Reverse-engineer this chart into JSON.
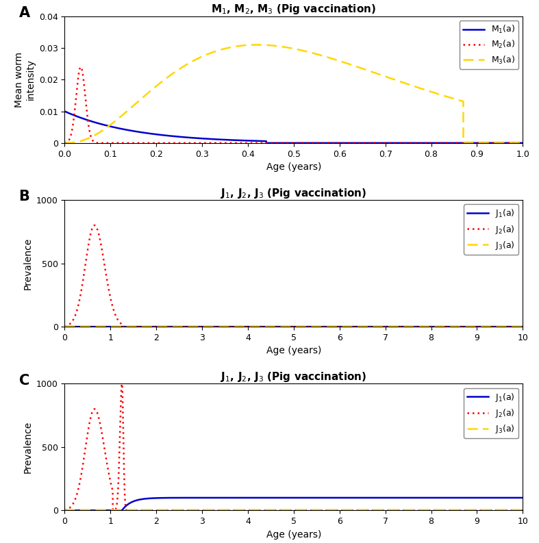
{
  "panel_A": {
    "title": "M$_1$, M$_2$, M$_3$ (Pig vaccination)",
    "xlabel": "Age (years)",
    "ylabel": "Mean worm\nintensity",
    "xlim": [
      0,
      1
    ],
    "ylim": [
      0,
      0.04
    ],
    "yticks": [
      0,
      0.01,
      0.02,
      0.03,
      0.04
    ],
    "xticks": [
      0,
      0.1,
      0.2,
      0.3,
      0.4,
      0.5,
      0.6,
      0.7,
      0.8,
      0.9,
      1.0
    ],
    "M1_color": "#0000CD",
    "M2_color": "#FF0000",
    "M3_color": "#FFD700",
    "label": "A"
  },
  "panel_B": {
    "title": "J$_1$, J$_2$, J$_3$ (Pig vaccination)",
    "xlabel": "Age (years)",
    "ylabel": "Prevalence",
    "xlim": [
      0,
      10
    ],
    "ylim": [
      0,
      1000
    ],
    "yticks": [
      0,
      500,
      1000
    ],
    "xticks": [
      0,
      1,
      2,
      3,
      4,
      5,
      6,
      7,
      8,
      9,
      10
    ],
    "J1_color": "#0000CD",
    "J2_color": "#FF0000",
    "J3_color": "#FFD700",
    "label": "B"
  },
  "panel_C": {
    "title": "J$_1$, J$_2$, J$_3$ (Pig vaccination)",
    "xlabel": "Age (years)",
    "ylabel": "Prevalence",
    "xlim": [
      0,
      10
    ],
    "ylim": [
      0,
      1000
    ],
    "yticks": [
      0,
      500,
      1000
    ],
    "xticks": [
      0,
      1,
      2,
      3,
      4,
      5,
      6,
      7,
      8,
      9,
      10
    ],
    "J1_color": "#0000CD",
    "J2_color": "#FF0000",
    "J3_color": "#FFD700",
    "label": "C"
  }
}
